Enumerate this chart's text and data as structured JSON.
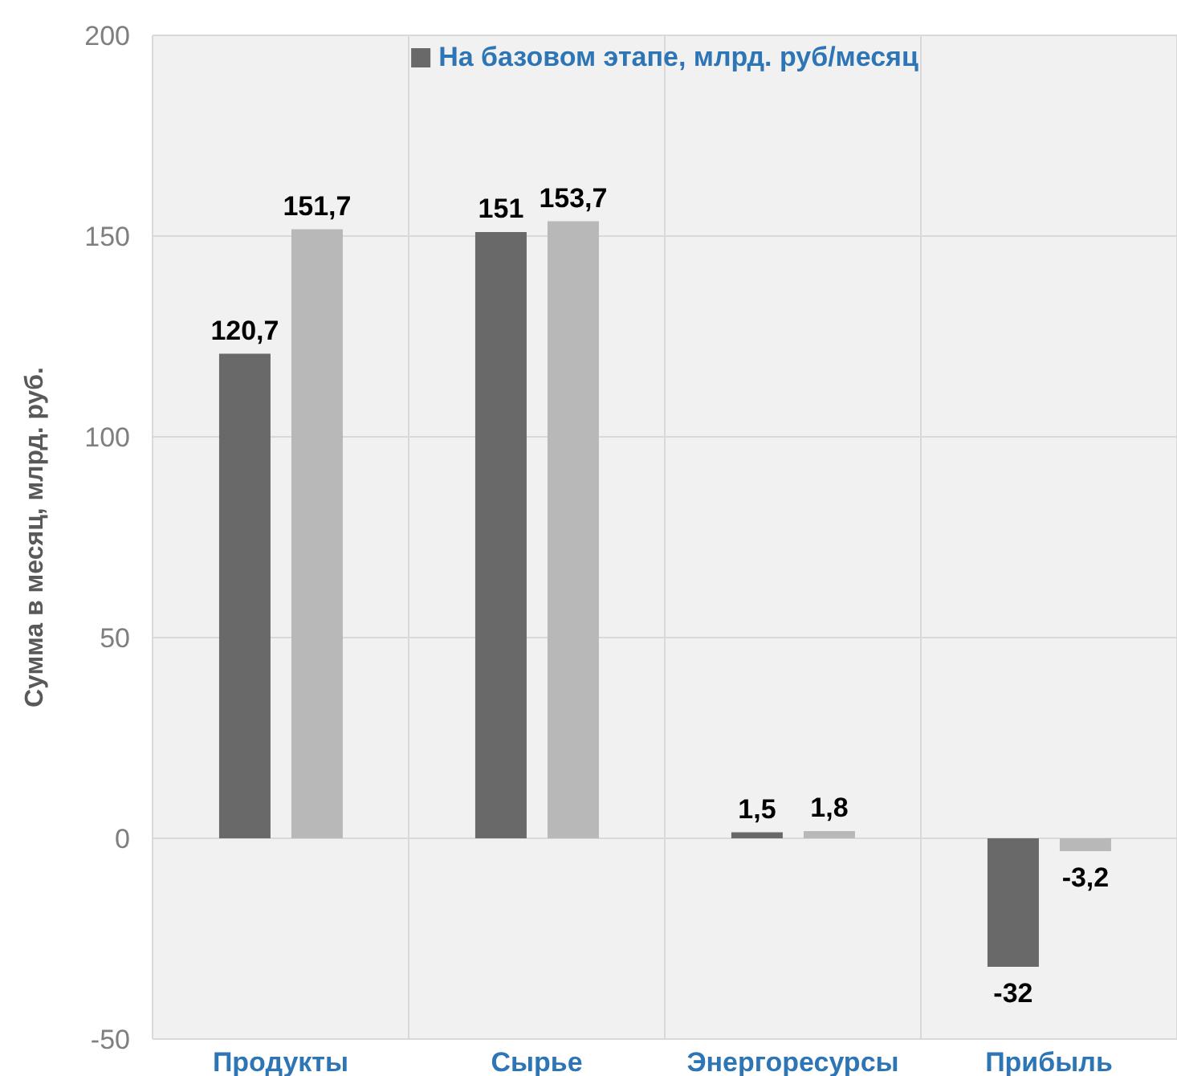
{
  "chart_data": {
    "type": "bar",
    "categories": [
      "Продукты",
      "Сырье",
      "Энергоресурсы",
      "Прибыль"
    ],
    "ylabel": "Сумма в месяц, млрд. руб.",
    "series": [
      {
        "name": "На базовом этапе, млрд. руб/месяц",
        "color": "#696969",
        "values": [
          120.7,
          151,
          1.5,
          -32
        ],
        "value_labels": [
          "120,7",
          "151",
          "1,5",
          "-32"
        ]
      },
      {
        "color": "#b8b8b8",
        "values": [
          151.7,
          153.7,
          1.8,
          -3.2
        ],
        "value_labels": [
          "151,7",
          "153,7",
          "1,8",
          "-3,2"
        ]
      }
    ],
    "ylim": [
      -50,
      200
    ],
    "yticks": [
      -50,
      0,
      50,
      100,
      150,
      200
    ],
    "grid": true,
    "legend": "top"
  }
}
